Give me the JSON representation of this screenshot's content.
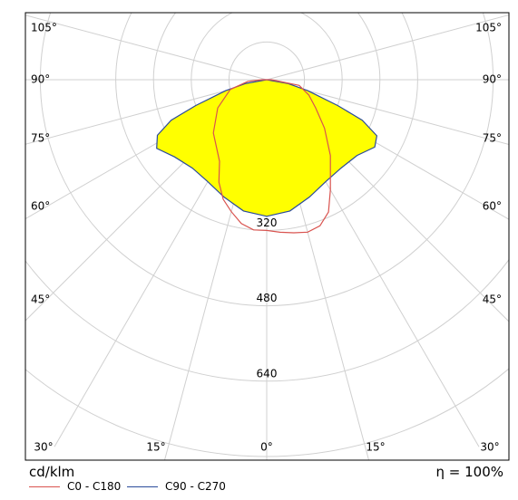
{
  "chart_data": {
    "type": "polar-photometric",
    "unit_label": "cd/klm",
    "efficiency_label": "η = 100%",
    "angle_labels": {
      "left": [
        "105°",
        "90°",
        "75°",
        "60°",
        "45°"
      ],
      "right": [
        "105°",
        "90°",
        "75°",
        "60°",
        "45°"
      ],
      "bottom": [
        "30°",
        "15°",
        "0°",
        "15°",
        "30°"
      ]
    },
    "radial_ticks": [
      {
        "value": 320,
        "label": "320"
      },
      {
        "value": 480,
        "label": "480"
      },
      {
        "value": 640,
        "label": "640"
      }
    ],
    "rings_cd_klm": [
      80,
      160,
      240,
      320,
      480,
      640,
      800
    ],
    "spokes_deg": [
      0,
      15,
      30,
      45,
      60,
      75,
      90,
      105
    ],
    "series": [
      {
        "name": "C0 - C180",
        "color": "#d9534f",
        "fill": "none",
        "polar": [
          [
            -90,
            10
          ],
          [
            -85,
            40
          ],
          [
            -75,
            80
          ],
          [
            -60,
            120
          ],
          [
            -45,
            160
          ],
          [
            -30,
            200
          ],
          [
            -25,
            240
          ],
          [
            -20,
            270
          ],
          [
            -15,
            290
          ],
          [
            -10,
            310
          ],
          [
            -5,
            320
          ],
          [
            0,
            320
          ],
          [
            5,
            325
          ],
          [
            10,
            330
          ],
          [
            15,
            335
          ],
          [
            20,
            330
          ],
          [
            25,
            310
          ],
          [
            30,
            270
          ],
          [
            40,
            210
          ],
          [
            50,
            160
          ],
          [
            60,
            120
          ],
          [
            70,
            95
          ],
          [
            80,
            70
          ],
          [
            90,
            10
          ]
        ]
      },
      {
        "name": "C90 - C270",
        "color": "#2a4b9b",
        "fill": "#ffff00",
        "polar": [
          [
            -90,
            0
          ],
          [
            -80,
            45
          ],
          [
            -75,
            90
          ],
          [
            -70,
            160
          ],
          [
            -67,
            220
          ],
          [
            -63,
            260
          ],
          [
            -58,
            275
          ],
          [
            -50,
            255
          ],
          [
            -40,
            245
          ],
          [
            -30,
            250
          ],
          [
            -20,
            265
          ],
          [
            -10,
            283
          ],
          [
            0,
            290
          ],
          [
            10,
            283
          ],
          [
            20,
            265
          ],
          [
            30,
            250
          ],
          [
            40,
            245
          ],
          [
            50,
            250
          ],
          [
            58,
            270
          ],
          [
            63,
            262
          ],
          [
            67,
            220
          ],
          [
            70,
            160
          ],
          [
            75,
            90
          ],
          [
            80,
            45
          ],
          [
            90,
            0
          ]
        ]
      }
    ],
    "colors": {
      "grid": "#d0d0d0",
      "frame": "#000000",
      "fill": "#ffff00",
      "c0": "#d9534f",
      "c90": "#2a4b9b"
    }
  }
}
